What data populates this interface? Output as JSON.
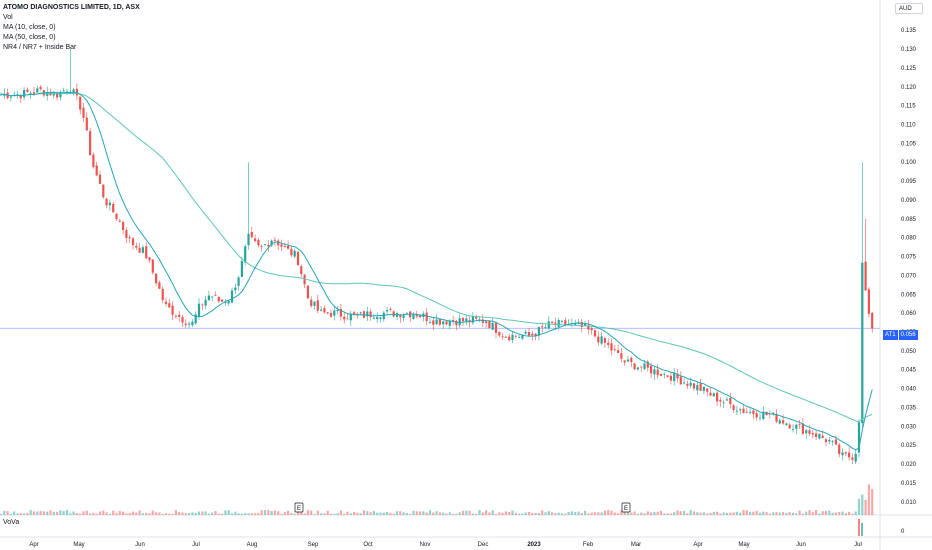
{
  "legend": {
    "title": "ATOMO DIAGNOSTICS LIMITED, 1D, ASX",
    "lines": [
      "Vol",
      "MA (10, close, 0)",
      "MA (50, close, 0)",
      "NR4 / NR7 + Inside Bar"
    ]
  },
  "currency": "AUD",
  "last_price": {
    "symbol": "AT1",
    "value": "0.056"
  },
  "lower_pane": {
    "label": "VoVa",
    "zero": "0"
  },
  "colors": {
    "up": "#26a69a",
    "down": "#ef5350",
    "ma10": "#26a6b8",
    "ma50": "#5ec7b5",
    "price_line": "#9aa6ff"
  },
  "chart_data": {
    "type": "candlestick",
    "title": "ATOMO DIAGNOSTICS LIMITED, 1D, ASX",
    "ylim": [
      0.0065,
      0.143
    ],
    "y_ticks": [
      "0.135",
      "0.130",
      "0.125",
      "0.120",
      "0.115",
      "0.110",
      "0.105",
      "0.100",
      "0.095",
      "0.090",
      "0.085",
      "0.080",
      "0.075",
      "0.070",
      "0.065",
      "0.060",
      "0.055",
      "0.050",
      "0.045",
      "0.040",
      "0.035",
      "0.030",
      "0.025",
      "0.020",
      "0.015",
      "0.010"
    ],
    "x_labels": [
      "Apr",
      "May",
      "Jun",
      "Jul",
      "Aug",
      "Sep",
      "Oct",
      "Nov",
      "Dec",
      "2023",
      "Feb",
      "Mar",
      "Apr",
      "May",
      "Jun",
      "Jul"
    ],
    "earnings_markers": [
      {
        "label": "E",
        "month": "Aug"
      },
      {
        "label": "E",
        "month": "Mar"
      }
    ],
    "last_price": 0.056,
    "series": [
      {
        "name": "Vol"
      },
      {
        "name": "MA (10, close, 0)"
      },
      {
        "name": "MA (50, close, 0)"
      }
    ],
    "path_anchors": [
      [
        0,
        0.118
      ],
      [
        20,
        0.118
      ],
      [
        40,
        0.119
      ],
      [
        57,
        0.118
      ],
      [
        70,
        0.12
      ],
      [
        82,
        0.114
      ],
      [
        92,
        0.1
      ],
      [
        105,
        0.09
      ],
      [
        118,
        0.085
      ],
      [
        130,
        0.079
      ],
      [
        145,
        0.076
      ],
      [
        157,
        0.068
      ],
      [
        165,
        0.062
      ],
      [
        180,
        0.059
      ],
      [
        192,
        0.057
      ],
      [
        200,
        0.062
      ],
      [
        210,
        0.065
      ],
      [
        220,
        0.063
      ],
      [
        230,
        0.064
      ],
      [
        240,
        0.071
      ],
      [
        248,
        0.08
      ],
      [
        260,
        0.077
      ],
      [
        273,
        0.08
      ],
      [
        285,
        0.077
      ],
      [
        297,
        0.075
      ],
      [
        308,
        0.064
      ],
      [
        320,
        0.06
      ],
      [
        335,
        0.06
      ],
      [
        355,
        0.059
      ],
      [
        375,
        0.06
      ],
      [
        395,
        0.06
      ],
      [
        415,
        0.06
      ],
      [
        435,
        0.058
      ],
      [
        460,
        0.058
      ],
      [
        485,
        0.058
      ],
      [
        505,
        0.054
      ],
      [
        530,
        0.054
      ],
      [
        550,
        0.057
      ],
      [
        570,
        0.057
      ],
      [
        585,
        0.056
      ],
      [
        605,
        0.052
      ],
      [
        625,
        0.047
      ],
      [
        650,
        0.045
      ],
      [
        675,
        0.043
      ],
      [
        700,
        0.04
      ],
      [
        720,
        0.037
      ],
      [
        745,
        0.034
      ],
      [
        770,
        0.033
      ],
      [
        795,
        0.03
      ],
      [
        815,
        0.028
      ],
      [
        830,
        0.026
      ],
      [
        842,
        0.022
      ],
      [
        852,
        0.022
      ],
      [
        857,
        0.024
      ],
      [
        860,
        0.036
      ],
      [
        863,
        0.084
      ],
      [
        866,
        0.063
      ],
      [
        870,
        0.057
      ],
      [
        874,
        0.056
      ]
    ]
  }
}
